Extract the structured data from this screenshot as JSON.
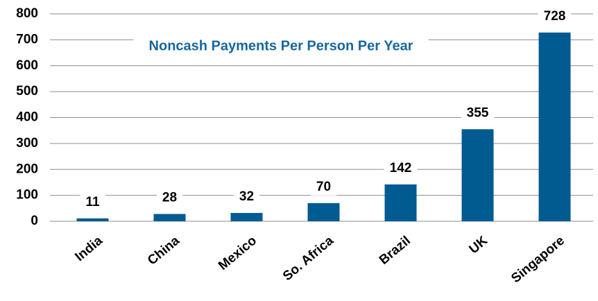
{
  "chart_data": {
    "type": "bar",
    "title": "Noncash Payments Per Person Per Year",
    "categories": [
      "India",
      "China",
      "Mexico",
      "So. Africa",
      "Brazil",
      "UK",
      "Singapore"
    ],
    "values": [
      11,
      28,
      32,
      70,
      142,
      355,
      728
    ],
    "color": "#005b91",
    "ylim": [
      0,
      800
    ],
    "yticks": [
      0,
      100,
      200,
      300,
      400,
      500,
      600,
      700,
      800
    ],
    "grid": true
  }
}
